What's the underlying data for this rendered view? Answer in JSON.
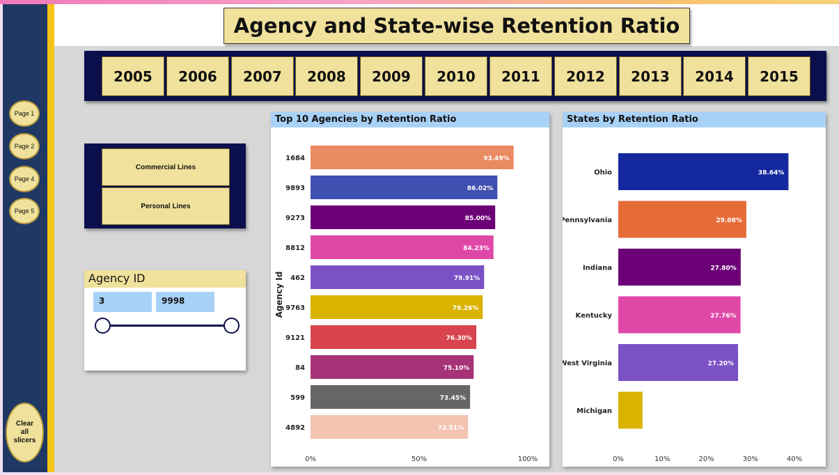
{
  "title": "Agency and State-wise Retention Ratio",
  "nav": {
    "pages": [
      "Page 1",
      "Page 2",
      "Page 4",
      "Page 5"
    ],
    "clear_label": "Clear\nall\nslicers"
  },
  "years": [
    "2005",
    "2006",
    "2007",
    "2008",
    "2009",
    "2010",
    "2011",
    "2012",
    "2013",
    "2014",
    "2015"
  ],
  "lines": [
    "Commercial Lines",
    "Personal Lines"
  ],
  "agency_slicer": {
    "title": "Agency ID",
    "min": "3",
    "max": "9998"
  },
  "colors": {
    "agency_bars": [
      "#ea8a60",
      "#4050b0",
      "#6b0077",
      "#e048a8",
      "#7b52c6",
      "#d9b300",
      "#d9444e",
      "#a63278",
      "#666666",
      "#f3c3b0"
    ],
    "state_bars": [
      "#1428a0",
      "#e66c37",
      "#6b0077",
      "#e048a8",
      "#7b52c6",
      "#d9b300"
    ],
    "title_bg": "#f0e19c",
    "nav_bg": "#203864",
    "slicer_bg": "#0b0f4c",
    "header_blue": "#a8d1f7"
  },
  "chart_data": [
    {
      "type": "bar",
      "orientation": "horizontal",
      "title": "Top 10 Agencies by Retention Ratio",
      "ylabel": "Agency Id",
      "xlabel": "",
      "categories": [
        "1684",
        "9893",
        "9273",
        "8812",
        "462",
        "9763",
        "9121",
        "84",
        "599",
        "4892"
      ],
      "values": [
        93.49,
        86.02,
        85.0,
        84.23,
        79.91,
        79.26,
        76.3,
        75.1,
        73.45,
        72.51
      ],
      "data_labels": [
        "93.49%",
        "86.02%",
        "85.00%",
        "84.23%",
        "79.91%",
        "79.26%",
        "76.30%",
        "75.10%",
        "73.45%",
        "72.51%"
      ],
      "xticks": [
        "0%",
        "50%",
        "100%"
      ],
      "xtick_values": [
        0,
        50,
        100
      ],
      "xlim": [
        0,
        100
      ]
    },
    {
      "type": "bar",
      "orientation": "horizontal",
      "title": "States by Retention Ratio",
      "xlabel": "",
      "ylabel": "",
      "categories": [
        "Ohio",
        "Pennsylvania",
        "Indiana",
        "Kentucky",
        "West Virginia",
        "Michigan"
      ],
      "values": [
        38.64,
        29.08,
        27.8,
        27.76,
        27.2,
        5.5
      ],
      "data_labels": [
        "38.64%",
        "29.08%",
        "27.80%",
        "27.76%",
        "27.20%",
        ""
      ],
      "xticks": [
        "0%",
        "10%",
        "20%",
        "30%",
        "40%"
      ],
      "xtick_values": [
        0,
        10,
        20,
        30,
        40
      ],
      "xlim": [
        0,
        40
      ]
    }
  ]
}
